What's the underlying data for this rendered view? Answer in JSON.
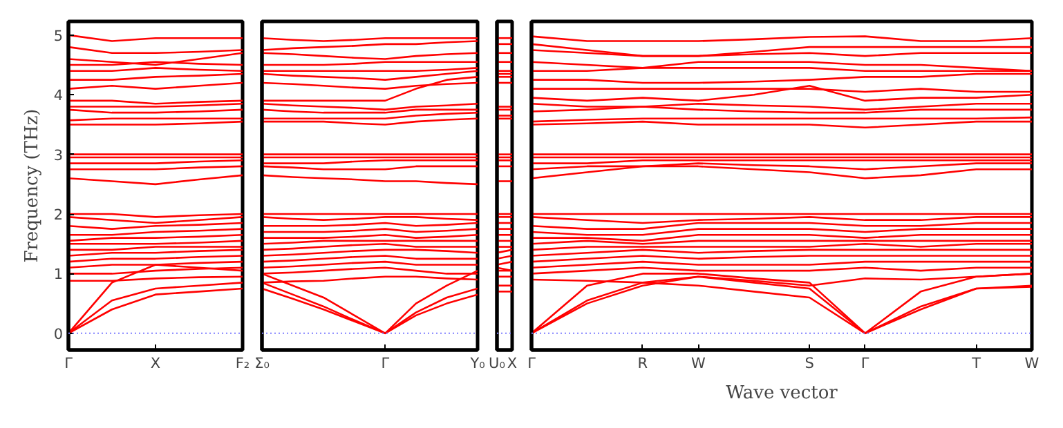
{
  "chart_data": [
    {
      "type": "line",
      "ylabel": "Frequency (THz)",
      "categories": [
        "Γ",
        null,
        "X",
        null,
        "F₂"
      ],
      "ylim": [
        -0.28,
        5.23
      ],
      "yticks": [
        0,
        1,
        2,
        3,
        4,
        5
      ],
      "marker": "none",
      "line_style": "solid",
      "ref_lines": [
        {
          "axis": "y",
          "value": 0,
          "color": "#8080ff",
          "line_style": "dotted"
        }
      ],
      "series": [
        {
          "color": "#ff0000",
          "values": [
            0,
            0.55,
            0.75,
            0.8,
            0.85
          ]
        },
        {
          "color": "#ff0000",
          "values": [
            0,
            0.4,
            0.65,
            0.7,
            0.75
          ]
        },
        {
          "color": "#ff0000",
          "values": [
            0,
            0.85,
            1.15,
            1.1,
            1.05
          ]
        },
        {
          "color": "#ff0000",
          "values": [
            0.88,
            0.88,
            0.92,
            0.94,
            0.95
          ]
        },
        {
          "color": "#ff0000",
          "values": [
            1,
            1,
            1.05,
            1.08,
            1.1
          ]
        },
        {
          "color": "#ff0000",
          "values": [
            1.1,
            1.15,
            1.15,
            1.18,
            1.2
          ]
        },
        {
          "color": "#ff0000",
          "values": [
            1.2,
            1.25,
            1.25,
            1.28,
            1.3
          ]
        },
        {
          "color": "#ff0000",
          "values": [
            1.3,
            1.35,
            1.35,
            1.38,
            1.4
          ]
        },
        {
          "color": "#ff0000",
          "values": [
            1.4,
            1.4,
            1.45,
            1.45,
            1.45
          ]
        },
        {
          "color": "#ff0000",
          "values": [
            1.5,
            1.5,
            1.5,
            1.52,
            1.55
          ]
        },
        {
          "color": "#ff0000",
          "values": [
            1.55,
            1.6,
            1.6,
            1.62,
            1.65
          ]
        },
        {
          "color": "#ff0000",
          "values": [
            1.65,
            1.65,
            1.7,
            1.72,
            1.75
          ]
        },
        {
          "color": "#ff0000",
          "values": [
            1.8,
            1.75,
            1.8,
            1.82,
            1.85
          ]
        },
        {
          "color": "#ff0000",
          "values": [
            1.95,
            1.9,
            1.85,
            1.9,
            1.95
          ]
        },
        {
          "color": "#ff0000",
          "values": [
            2,
            2,
            1.95,
            1.98,
            2
          ]
        },
        {
          "color": "#ff0000",
          "values": [
            2.6,
            2.55,
            2.5,
            2.58,
            2.65
          ]
        },
        {
          "color": "#ff0000",
          "values": [
            2.75,
            2.75,
            2.75,
            2.78,
            2.8
          ]
        },
        {
          "color": "#ff0000",
          "values": [
            2.85,
            2.85,
            2.85,
            2.88,
            2.9
          ]
        },
        {
          "color": "#ff0000",
          "values": [
            2.95,
            2.95,
            2.95,
            2.95,
            2.95
          ]
        },
        {
          "color": "#ff0000",
          "values": [
            3,
            3,
            3,
            3,
            3
          ]
        },
        {
          "color": "#ff0000",
          "values": [
            3.5,
            3.5,
            3.5,
            3.52,
            3.55
          ]
        },
        {
          "color": "#ff0000",
          "values": [
            3.57,
            3.6,
            3.6,
            3.6,
            3.6
          ]
        },
        {
          "color": "#ff0000",
          "values": [
            3.75,
            3.7,
            3.7,
            3.72,
            3.75
          ]
        },
        {
          "color": "#ff0000",
          "values": [
            3.8,
            3.8,
            3.8,
            3.82,
            3.85
          ]
        },
        {
          "color": "#ff0000",
          "values": [
            3.9,
            3.9,
            3.85,
            3.88,
            3.9
          ]
        },
        {
          "color": "#ff0000",
          "values": [
            4.1,
            4.15,
            4.1,
            4.15,
            4.2
          ]
        },
        {
          "color": "#ff0000",
          "values": [
            4.25,
            4.25,
            4.3,
            4.32,
            4.35
          ]
        },
        {
          "color": "#ff0000",
          "values": [
            4.4,
            4.4,
            4.45,
            4.42,
            4.4
          ]
        },
        {
          "color": "#ff0000",
          "values": [
            4.5,
            4.5,
            4.55,
            4.52,
            4.5
          ]
        },
        {
          "color": "#ff0000",
          "values": [
            4.6,
            4.55,
            4.5,
            4.6,
            4.7
          ]
        },
        {
          "color": "#ff0000",
          "values": [
            4.8,
            4.7,
            4.7,
            4.72,
            4.75
          ]
        },
        {
          "color": "#ff0000",
          "values": [
            5,
            4.9,
            4.95,
            4.95,
            4.95
          ]
        }
      ]
    },
    {
      "type": "line",
      "categories": [
        "Σ₀",
        null,
        null,
        null,
        "Γ",
        null,
        null,
        "Y₀"
      ],
      "tick_labels": "x",
      "ylim": [
        -0.28,
        5.23
      ],
      "yticks": [
        0,
        1,
        2,
        3,
        4,
        5
      ],
      "marker": "none",
      "line_style": "solid",
      "ref_lines": [
        {
          "axis": "y",
          "value": 0,
          "color": "#8080ff",
          "line_style": "dotted"
        }
      ],
      "series": [
        {
          "color": "#ff0000",
          "values": [
            0.85,
            0.65,
            0.45,
            0.22,
            0,
            0.35,
            0.6,
            0.75
          ]
        },
        {
          "color": "#ff0000",
          "values": [
            0.75,
            0.58,
            0.4,
            0.2,
            0,
            0.3,
            0.5,
            0.65
          ]
        },
        {
          "color": "#ff0000",
          "values": [
            1.0,
            0.8,
            0.6,
            0.3,
            0,
            0.5,
            0.8,
            1.05
          ]
        },
        {
          "color": "#ff0000",
          "values": [
            0.85,
            0.87,
            0.88,
            0.92,
            0.95,
            0.95,
            0.92,
            0.9
          ]
        },
        {
          "color": "#ff0000",
          "values": [
            1,
            1.02,
            1.05,
            1.08,
            1.1,
            1.05,
            1,
            1
          ]
        },
        {
          "color": "#ff0000",
          "values": [
            1.1,
            1.12,
            1.15,
            1.18,
            1.2,
            1.15,
            1.15,
            1.15
          ]
        },
        {
          "color": "#ff0000",
          "values": [
            1.2,
            1.22,
            1.25,
            1.28,
            1.3,
            1.25,
            1.25,
            1.25
          ]
        },
        {
          "color": "#ff0000",
          "values": [
            1.3,
            1.32,
            1.35,
            1.38,
            1.4,
            1.4,
            1.38,
            1.35
          ]
        },
        {
          "color": "#ff0000",
          "values": [
            1.4,
            1.42,
            1.45,
            1.48,
            1.5,
            1.45,
            1.45,
            1.45
          ]
        },
        {
          "color": "#ff0000",
          "values": [
            1.5,
            1.52,
            1.55,
            1.55,
            1.55,
            1.55,
            1.55,
            1.55
          ]
        },
        {
          "color": "#ff0000",
          "values": [
            1.6,
            1.6,
            1.6,
            1.62,
            1.65,
            1.6,
            1.62,
            1.65
          ]
        },
        {
          "color": "#ff0000",
          "values": [
            1.7,
            1.7,
            1.7,
            1.72,
            1.75,
            1.7,
            1.72,
            1.75
          ]
        },
        {
          "color": "#ff0000",
          "values": [
            1.8,
            1.8,
            1.8,
            1.82,
            1.85,
            1.8,
            1.82,
            1.85
          ]
        },
        {
          "color": "#ff0000",
          "values": [
            1.95,
            1.92,
            1.9,
            1.92,
            1.95,
            1.95,
            1.92,
            1.9
          ]
        },
        {
          "color": "#ff0000",
          "values": [
            2,
            2,
            2,
            2,
            2,
            2,
            2,
            2
          ]
        },
        {
          "color": "#ff0000",
          "values": [
            2.65,
            2.62,
            2.6,
            2.58,
            2.55,
            2.55,
            2.52,
            2.5
          ]
        },
        {
          "color": "#ff0000",
          "values": [
            2.8,
            2.78,
            2.75,
            2.75,
            2.75,
            2.8,
            2.8,
            2.8
          ]
        },
        {
          "color": "#ff0000",
          "values": [
            2.85,
            2.85,
            2.85,
            2.88,
            2.9,
            2.9,
            2.9,
            2.9
          ]
        },
        {
          "color": "#ff0000",
          "values": [
            2.95,
            2.95,
            2.95,
            2.95,
            2.95,
            2.95,
            2.95,
            2.95
          ]
        },
        {
          "color": "#ff0000",
          "values": [
            3,
            3,
            3,
            3,
            3,
            3,
            3,
            3
          ]
        },
        {
          "color": "#ff0000",
          "values": [
            3.55,
            3.55,
            3.55,
            3.52,
            3.5,
            3.55,
            3.58,
            3.6
          ]
        },
        {
          "color": "#ff0000",
          "values": [
            3.6,
            3.6,
            3.6,
            3.6,
            3.6,
            3.65,
            3.68,
            3.7
          ]
        },
        {
          "color": "#ff0000",
          "values": [
            3.75,
            3.72,
            3.7,
            3.7,
            3.7,
            3.75,
            3.75,
            3.75
          ]
        },
        {
          "color": "#ff0000",
          "values": [
            3.85,
            3.82,
            3.8,
            3.78,
            3.75,
            3.8,
            3.82,
            3.85
          ]
        },
        {
          "color": "#ff0000",
          "values": [
            3.9,
            3.9,
            3.9,
            3.9,
            3.9,
            4.1,
            4.25,
            4.3
          ]
        },
        {
          "color": "#ff0000",
          "values": [
            4.2,
            4.18,
            4.15,
            4.12,
            4.1,
            4.15,
            4.18,
            4.2
          ]
        },
        {
          "color": "#ff0000",
          "values": [
            4.35,
            4.32,
            4.3,
            4.28,
            4.25,
            4.3,
            4.35,
            4.4
          ]
        },
        {
          "color": "#ff0000",
          "values": [
            4.4,
            4.4,
            4.4,
            4.4,
            4.4,
            4.4,
            4.42,
            4.45
          ]
        },
        {
          "color": "#ff0000",
          "values": [
            4.5,
            4.5,
            4.5,
            4.52,
            4.55,
            4.55,
            4.55,
            4.55
          ]
        },
        {
          "color": "#ff0000",
          "values": [
            4.7,
            4.68,
            4.65,
            4.62,
            4.6,
            4.65,
            4.68,
            4.7
          ]
        },
        {
          "color": "#ff0000",
          "values": [
            4.75,
            4.78,
            4.8,
            4.82,
            4.85,
            4.85,
            4.88,
            4.9
          ]
        },
        {
          "color": "#ff0000",
          "values": [
            4.95,
            4.92,
            4.9,
            4.92,
            4.95,
            4.95,
            4.95,
            4.95
          ]
        }
      ]
    },
    {
      "type": "line",
      "categories": [
        "U₀",
        "X"
      ],
      "tick_labels": "x",
      "ylim": [
        -0.28,
        5.23
      ],
      "yticks": [
        0,
        1,
        2,
        3,
        4,
        5
      ],
      "marker": "none",
      "line_style": "solid",
      "ref_lines": [
        {
          "axis": "y",
          "value": 0,
          "color": "#8080ff",
          "line_style": "dotted"
        }
      ],
      "series": [
        {
          "color": "#ff0000",
          "values": [
            0.8,
            0.8
          ]
        },
        {
          "color": "#ff0000",
          "values": [
            0.7,
            0.7
          ]
        },
        {
          "color": "#ff0000",
          "values": [
            1.1,
            1.05
          ]
        },
        {
          "color": "#ff0000",
          "values": [
            0.95,
            0.95
          ]
        },
        {
          "color": "#ff0000",
          "values": [
            1.05,
            1.05
          ]
        },
        {
          "color": "#ff0000",
          "values": [
            1.15,
            1.2
          ]
        },
        {
          "color": "#ff0000",
          "values": [
            1.25,
            1.3
          ]
        },
        {
          "color": "#ff0000",
          "values": [
            1.35,
            1.4
          ]
        },
        {
          "color": "#ff0000",
          "values": [
            1.45,
            1.45
          ]
        },
        {
          "color": "#ff0000",
          "values": [
            1.55,
            1.55
          ]
        },
        {
          "color": "#ff0000",
          "values": [
            1.65,
            1.65
          ]
        },
        {
          "color": "#ff0000",
          "values": [
            1.75,
            1.75
          ]
        },
        {
          "color": "#ff0000",
          "values": [
            1.85,
            1.85
          ]
        },
        {
          "color": "#ff0000",
          "values": [
            1.95,
            1.95
          ]
        },
        {
          "color": "#ff0000",
          "values": [
            2,
            2
          ]
        },
        {
          "color": "#ff0000",
          "values": [
            2.55,
            2.55
          ]
        },
        {
          "color": "#ff0000",
          "values": [
            2.8,
            2.8
          ]
        },
        {
          "color": "#ff0000",
          "values": [
            2.9,
            2.9
          ]
        },
        {
          "color": "#ff0000",
          "values": [
            2.95,
            2.95
          ]
        },
        {
          "color": "#ff0000",
          "values": [
            3,
            3
          ]
        },
        {
          "color": "#ff0000",
          "values": [
            3.6,
            3.6
          ]
        },
        {
          "color": "#ff0000",
          "values": [
            3.65,
            3.65
          ]
        },
        {
          "color": "#ff0000",
          "values": [
            3.75,
            3.75
          ]
        },
        {
          "color": "#ff0000",
          "values": [
            3.8,
            3.8
          ]
        },
        {
          "color": "#ff0000",
          "values": [
            4.3,
            4.3
          ]
        },
        {
          "color": "#ff0000",
          "values": [
            4.2,
            4.2
          ]
        },
        {
          "color": "#ff0000",
          "values": [
            4.35,
            4.35
          ]
        },
        {
          "color": "#ff0000",
          "values": [
            4.4,
            4.4
          ]
        },
        {
          "color": "#ff0000",
          "values": [
            4.55,
            4.55
          ]
        },
        {
          "color": "#ff0000",
          "values": [
            4.7,
            4.7
          ]
        },
        {
          "color": "#ff0000",
          "values": [
            4.85,
            4.85
          ]
        },
        {
          "color": "#ff0000",
          "values": [
            4.95,
            4.95
          ]
        }
      ]
    },
    {
      "type": "line",
      "xlabel": "Wave vector",
      "categories": [
        "Γ",
        null,
        "R",
        "W",
        null,
        "S",
        "Γ",
        null,
        "T",
        "W"
      ],
      "tick_labels": "x",
      "ylim": [
        -0.28,
        5.23
      ],
      "yticks": [
        0,
        1,
        2,
        3,
        4,
        5
      ],
      "marker": "none",
      "line_style": "solid",
      "ref_lines": [
        {
          "axis": "y",
          "value": 0,
          "color": "#8080ff",
          "line_style": "dotted"
        }
      ],
      "series": [
        {
          "color": "#ff0000",
          "values": [
            0,
            0.55,
            0.85,
            0.8,
            0.7,
            0.6,
            0,
            0.45,
            0.75,
            0.8
          ]
        },
        {
          "color": "#ff0000",
          "values": [
            0,
            0.5,
            0.8,
            0.95,
            0.85,
            0.75,
            0,
            0.4,
            0.75,
            0.78
          ]
        },
        {
          "color": "#ff0000",
          "values": [
            0,
            0.8,
            1.0,
            1.0,
            0.92,
            0.85,
            0,
            0.7,
            0.95,
            1.0
          ]
        },
        {
          "color": "#ff0000",
          "values": [
            0.9,
            0.88,
            0.85,
            0.95,
            0.88,
            0.8,
            0.92,
            0.9,
            0.95,
            1.0
          ]
        },
        {
          "color": "#ff0000",
          "values": [
            1,
            1.05,
            1.1,
            1.05,
            1.05,
            1.05,
            1.1,
            1.05,
            1.1,
            1.1
          ]
        },
        {
          "color": "#ff0000",
          "values": [
            1.1,
            1.15,
            1.2,
            1.15,
            1.15,
            1.15,
            1.2,
            1.2,
            1.2,
            1.2
          ]
        },
        {
          "color": "#ff0000",
          "values": [
            1.2,
            1.25,
            1.3,
            1.25,
            1.28,
            1.3,
            1.3,
            1.3,
            1.3,
            1.3
          ]
        },
        {
          "color": "#ff0000",
          "values": [
            1.3,
            1.35,
            1.4,
            1.35,
            1.38,
            1.4,
            1.4,
            1.4,
            1.4,
            1.4
          ]
        },
        {
          "color": "#ff0000",
          "values": [
            1.4,
            1.45,
            1.45,
            1.45,
            1.45,
            1.45,
            1.5,
            1.45,
            1.5,
            1.5
          ]
        },
        {
          "color": "#ff0000",
          "values": [
            1.5,
            1.55,
            1.5,
            1.55,
            1.55,
            1.55,
            1.55,
            1.55,
            1.55,
            1.55
          ]
        },
        {
          "color": "#ff0000",
          "values": [
            1.6,
            1.6,
            1.55,
            1.65,
            1.65,
            1.65,
            1.6,
            1.65,
            1.65,
            1.65
          ]
        },
        {
          "color": "#ff0000",
          "values": [
            1.7,
            1.65,
            1.65,
            1.75,
            1.75,
            1.75,
            1.7,
            1.75,
            1.75,
            1.75
          ]
        },
        {
          "color": "#ff0000",
          "values": [
            1.8,
            1.75,
            1.75,
            1.85,
            1.85,
            1.85,
            1.8,
            1.8,
            1.85,
            1.85
          ]
        },
        {
          "color": "#ff0000",
          "values": [
            1.95,
            1.9,
            1.85,
            1.9,
            1.92,
            1.95,
            1.9,
            1.9,
            1.95,
            1.95
          ]
        },
        {
          "color": "#ff0000",
          "values": [
            2,
            2,
            2,
            2,
            2,
            2,
            2,
            2,
            2,
            2
          ]
        },
        {
          "color": "#ff0000",
          "values": [
            2.6,
            2.7,
            2.8,
            2.8,
            2.75,
            2.7,
            2.6,
            2.65,
            2.75,
            2.75
          ]
        },
        {
          "color": "#ff0000",
          "values": [
            2.75,
            2.8,
            2.8,
            2.85,
            2.82,
            2.8,
            2.75,
            2.8,
            2.85,
            2.85
          ]
        },
        {
          "color": "#ff0000",
          "values": [
            2.85,
            2.85,
            2.9,
            2.9,
            2.9,
            2.9,
            2.9,
            2.9,
            2.9,
            2.9
          ]
        },
        {
          "color": "#ff0000",
          "values": [
            2.95,
            2.95,
            2.95,
            2.95,
            2.95,
            2.95,
            2.95,
            2.95,
            2.95,
            2.95
          ]
        },
        {
          "color": "#ff0000",
          "values": [
            3,
            3,
            3,
            3,
            3,
            3,
            3,
            3,
            3,
            3
          ]
        },
        {
          "color": "#ff0000",
          "values": [
            3.5,
            3.52,
            3.55,
            3.5,
            3.5,
            3.5,
            3.45,
            3.5,
            3.55,
            3.55
          ]
        },
        {
          "color": "#ff0000",
          "values": [
            3.55,
            3.58,
            3.6,
            3.6,
            3.6,
            3.6,
            3.6,
            3.6,
            3.6,
            3.62
          ]
        },
        {
          "color": "#ff0000",
          "values": [
            3.72,
            3.75,
            3.8,
            3.75,
            3.72,
            3.7,
            3.7,
            3.75,
            3.75,
            3.75
          ]
        },
        {
          "color": "#ff0000",
          "values": [
            3.85,
            3.8,
            3.8,
            3.85,
            3.82,
            3.8,
            3.75,
            3.8,
            3.85,
            3.85
          ]
        },
        {
          "color": "#ff0000",
          "values": [
            3.95,
            3.9,
            3.95,
            3.9,
            4.0,
            4.15,
            3.9,
            3.95,
            3.95,
            4.0
          ]
        },
        {
          "color": "#ff0000",
          "values": [
            4.1,
            4.1,
            4.1,
            4.1,
            4.1,
            4.1,
            4.05,
            4.1,
            4.05,
            4.05
          ]
        },
        {
          "color": "#ff0000",
          "values": [
            4.25,
            4.25,
            4.2,
            4.2,
            4.22,
            4.25,
            4.3,
            4.3,
            4.35,
            4.35
          ]
        },
        {
          "color": "#ff0000",
          "values": [
            4.4,
            4.4,
            4.45,
            4.45,
            4.45,
            4.45,
            4.4,
            4.4,
            4.4,
            4.4
          ]
        },
        {
          "color": "#ff0000",
          "values": [
            4.55,
            4.5,
            4.45,
            4.55,
            4.55,
            4.55,
            4.5,
            4.5,
            4.45,
            4.4
          ]
        },
        {
          "color": "#ff0000",
          "values": [
            4.75,
            4.7,
            4.65,
            4.65,
            4.68,
            4.7,
            4.65,
            4.7,
            4.7,
            4.7
          ]
        },
        {
          "color": "#ff0000",
          "values": [
            4.85,
            4.75,
            4.65,
            4.65,
            4.72,
            4.8,
            4.8,
            4.8,
            4.8,
            4.8
          ]
        },
        {
          "color": "#ff0000",
          "values": [
            4.98,
            4.9,
            4.9,
            4.9,
            4.93,
            4.97,
            4.98,
            4.9,
            4.9,
            4.95
          ]
        }
      ]
    }
  ]
}
